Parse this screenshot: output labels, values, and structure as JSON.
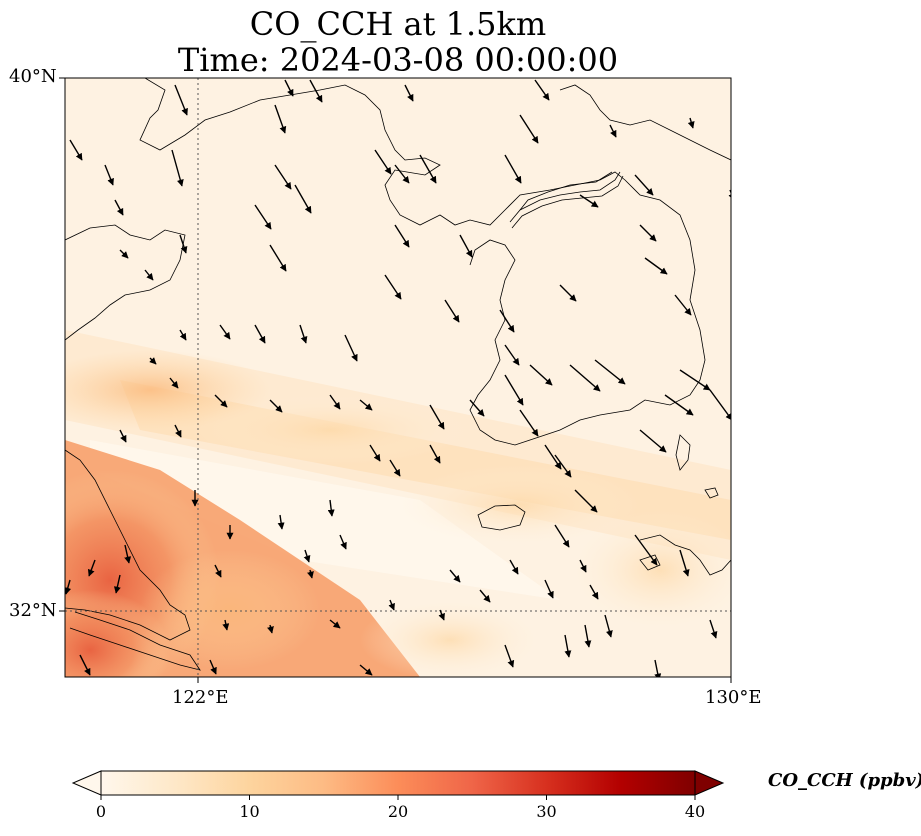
{
  "title": {
    "line1": "CO_CCH at 1.5km",
    "line2": "Time: 2024-03-08 00:00:00"
  },
  "map": {
    "lat_labels": [
      "40°N",
      "32°N"
    ],
    "lon_labels": [
      "122°E",
      "130°E"
    ],
    "extent": {
      "lon_min": 120,
      "lon_max": 130,
      "lat_min": 31,
      "lat_max": 40
    },
    "gridlines": {
      "lons": [
        122
      ],
      "lats": [
        32
      ],
      "style": "dotted"
    },
    "field_colormap": "OrRd",
    "colors": {
      "low": "#fff7ec",
      "mid": "#fdd49e",
      "high": "#e34a33",
      "max": "#7f0000"
    }
  },
  "colorbar": {
    "label": "CO_CCH (ppbv)",
    "ticks": [
      "0",
      "10",
      "20",
      "30",
      "40"
    ],
    "range": [
      0,
      40
    ],
    "extend": "both"
  }
}
